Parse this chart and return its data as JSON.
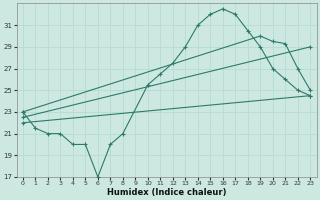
{
  "xlabel": "Humidex (Indice chaleur)",
  "bg_color": "#cce8e0",
  "line_color": "#2d7a6a",
  "grid_color": "#b8ddd6",
  "xlim": [
    -0.5,
    23.5
  ],
  "ylim": [
    17,
    33
  ],
  "xticks": [
    0,
    1,
    2,
    3,
    4,
    5,
    6,
    7,
    8,
    9,
    10,
    11,
    12,
    13,
    14,
    15,
    16,
    17,
    18,
    19,
    20,
    21,
    22,
    23
  ],
  "yticks": [
    17,
    19,
    21,
    23,
    25,
    27,
    29,
    31
  ],
  "curve1_x": [
    0,
    1,
    2,
    3,
    4,
    5,
    6,
    7,
    8,
    10,
    11,
    12,
    13,
    14,
    15,
    16,
    17,
    18,
    19,
    20,
    21,
    22,
    23
  ],
  "curve1_y": [
    23,
    21.5,
    21,
    21,
    20,
    20,
    17,
    20,
    21,
    25.5,
    26.5,
    27.5,
    29,
    31,
    32,
    32.5,
    32,
    30.5,
    29,
    27,
    26,
    25,
    24.5
  ],
  "curve2_x": [
    0,
    19,
    20,
    21,
    22,
    23
  ],
  "curve2_y": [
    23,
    30,
    29.5,
    29.3,
    27,
    25
  ],
  "curve3_x": [
    0,
    23
  ],
  "curve3_y": [
    22,
    24.5
  ],
  "curve4_x": [
    0,
    23
  ],
  "curve4_y": [
    22.5,
    29
  ]
}
